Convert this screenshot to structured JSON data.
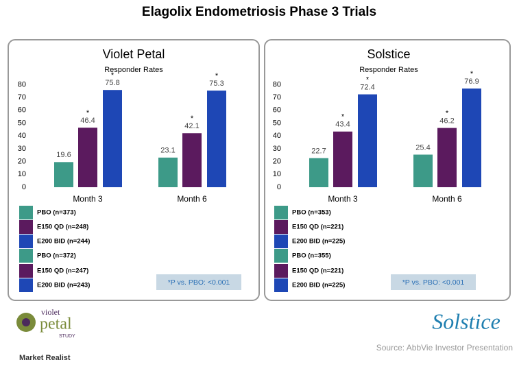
{
  "title": "Elagolix Endometriosis Phase 3 Trials",
  "chart_data": [
    {
      "type": "bar",
      "title": "Violet Petal",
      "subtitle": "Responder Rates",
      "categories": [
        "Month 3",
        "Month 6"
      ],
      "series": [
        {
          "color": "#3d9a88",
          "values": [
            19.6,
            23.1
          ]
        },
        {
          "color": "#5b1a5e",
          "values": [
            46.4,
            42.1
          ],
          "annotations": [
            "*",
            "*"
          ]
        },
        {
          "color": "#1e47b5",
          "values": [
            75.8,
            75.3
          ],
          "annotations": [
            "*",
            "*"
          ]
        }
      ],
      "ylim": [
        0,
        85
      ],
      "yticks": [
        0,
        10,
        20,
        30,
        40,
        50,
        60,
        70,
        80
      ],
      "legend": [
        {
          "label": "PBO (n=373)",
          "color": "#3d9a88"
        },
        {
          "label": "E150 QD (n=248)",
          "color": "#5b1a5e"
        },
        {
          "label": "E200 BID (n=244)",
          "color": "#1e47b5"
        },
        {
          "label": "PBO (n=372)",
          "color": "#3d9a88"
        },
        {
          "label": "E150 QD (n=247)",
          "color": "#5b1a5e"
        },
        {
          "label": "E200 BID (n=243)",
          "color": "#1e47b5"
        }
      ],
      "footnote": "*P vs. PBO: <0.001"
    },
    {
      "type": "bar",
      "title": "Solstice",
      "subtitle": "Responder Rates",
      "categories": [
        "Month 3",
        "Month 6"
      ],
      "series": [
        {
          "color": "#3d9a88",
          "values": [
            22.7,
            25.4
          ]
        },
        {
          "color": "#5b1a5e",
          "values": [
            43.4,
            46.2
          ],
          "annotations": [
            "*",
            "*"
          ]
        },
        {
          "color": "#1e47b5",
          "values": [
            72.4,
            76.9
          ],
          "annotations": [
            "*",
            "*"
          ]
        }
      ],
      "ylim": [
        0,
        85
      ],
      "yticks": [
        0,
        10,
        20,
        30,
        40,
        50,
        60,
        70,
        80
      ],
      "legend": [
        {
          "label": "PBO (n=353)",
          "color": "#3d9a88"
        },
        {
          "label": "E150 QD (n=221)",
          "color": "#5b1a5e"
        },
        {
          "label": "E200 BID (n=225)",
          "color": "#1e47b5"
        },
        {
          "label": "PBO (n=355)",
          "color": "#3d9a88"
        },
        {
          "label": "E150 QD (n=221)",
          "color": "#5b1a5e"
        },
        {
          "label": "E200 BID (n=225)",
          "color": "#1e47b5"
        }
      ],
      "footnote": "*P vs. PBO: <0.001"
    }
  ],
  "footer": {
    "logo_left": "violet",
    "logo_left_main": "petal",
    "logo_left_sub": "STUDY",
    "logo_right": "Solstice",
    "source": "Source: AbbVie Investor Presentation",
    "brand": "Market Realist"
  }
}
